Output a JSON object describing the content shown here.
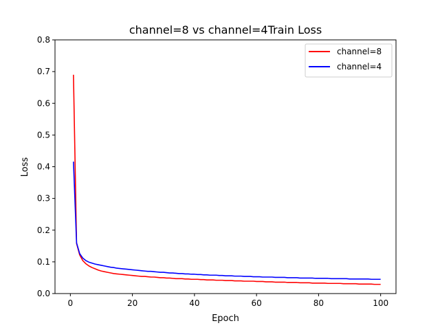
{
  "chart_data": {
    "type": "line",
    "title": "channel=8 vs channel=4Train Loss",
    "xlabel": "Epoch",
    "ylabel": "Loss",
    "xlim": [
      -4.95,
      104.95
    ],
    "ylim": [
      0,
      0.8
    ],
    "xticks": [
      0,
      20,
      40,
      60,
      80,
      100
    ],
    "yticks": [
      0.0,
      0.1,
      0.2,
      0.3,
      0.4,
      0.5,
      0.6,
      0.7,
      0.8
    ],
    "grid": false,
    "legend_position": "upper right",
    "x": [
      1,
      2,
      3,
      4,
      5,
      6,
      7,
      8,
      9,
      10,
      11,
      12,
      13,
      14,
      15,
      16,
      17,
      18,
      19,
      20,
      21,
      22,
      23,
      24,
      25,
      26,
      27,
      28,
      29,
      30,
      31,
      32,
      33,
      34,
      35,
      36,
      37,
      38,
      39,
      40,
      41,
      42,
      43,
      44,
      45,
      46,
      47,
      48,
      49,
      50,
      51,
      52,
      53,
      54,
      55,
      56,
      57,
      58,
      59,
      60,
      61,
      62,
      63,
      64,
      65,
      66,
      67,
      68,
      69,
      70,
      71,
      72,
      73,
      74,
      75,
      76,
      77,
      78,
      79,
      80,
      81,
      82,
      83,
      84,
      85,
      86,
      87,
      88,
      89,
      90,
      91,
      92,
      93,
      94,
      95,
      96,
      97,
      98,
      99,
      100
    ],
    "series": [
      {
        "name": "channel=8",
        "color": "#ff0000",
        "values": [
          0.69,
          0.158,
          0.122,
          0.104,
          0.094,
          0.087,
          0.082,
          0.078,
          0.074,
          0.071,
          0.069,
          0.067,
          0.065,
          0.063,
          0.062,
          0.061,
          0.06,
          0.059,
          0.058,
          0.057,
          0.056,
          0.055,
          0.054,
          0.054,
          0.053,
          0.052,
          0.052,
          0.051,
          0.05,
          0.05,
          0.049,
          0.049,
          0.048,
          0.047,
          0.047,
          0.047,
          0.046,
          0.046,
          0.045,
          0.045,
          0.045,
          0.044,
          0.044,
          0.043,
          0.043,
          0.043,
          0.042,
          0.042,
          0.042,
          0.041,
          0.041,
          0.041,
          0.04,
          0.04,
          0.04,
          0.039,
          0.039,
          0.039,
          0.039,
          0.038,
          0.038,
          0.038,
          0.037,
          0.037,
          0.037,
          0.036,
          0.036,
          0.036,
          0.036,
          0.035,
          0.035,
          0.035,
          0.035,
          0.034,
          0.034,
          0.034,
          0.034,
          0.033,
          0.033,
          0.033,
          0.033,
          0.033,
          0.032,
          0.032,
          0.032,
          0.032,
          0.032,
          0.031,
          0.031,
          0.031,
          0.031,
          0.031,
          0.03,
          0.03,
          0.03,
          0.03,
          0.03,
          0.029,
          0.029,
          0.029
        ]
      },
      {
        "name": "channel=4",
        "color": "#0000ff",
        "values": [
          0.416,
          0.16,
          0.126,
          0.112,
          0.104,
          0.099,
          0.096,
          0.093,
          0.091,
          0.089,
          0.087,
          0.085,
          0.083,
          0.082,
          0.08,
          0.079,
          0.078,
          0.077,
          0.076,
          0.075,
          0.074,
          0.073,
          0.072,
          0.071,
          0.07,
          0.07,
          0.069,
          0.068,
          0.067,
          0.067,
          0.066,
          0.065,
          0.065,
          0.064,
          0.063,
          0.063,
          0.062,
          0.062,
          0.061,
          0.061,
          0.06,
          0.06,
          0.059,
          0.059,
          0.058,
          0.058,
          0.058,
          0.057,
          0.057,
          0.056,
          0.056,
          0.056,
          0.055,
          0.055,
          0.055,
          0.054,
          0.054,
          0.054,
          0.053,
          0.053,
          0.053,
          0.052,
          0.052,
          0.052,
          0.052,
          0.051,
          0.051,
          0.051,
          0.051,
          0.05,
          0.05,
          0.05,
          0.05,
          0.049,
          0.049,
          0.049,
          0.049,
          0.049,
          0.048,
          0.048,
          0.048,
          0.048,
          0.048,
          0.047,
          0.047,
          0.047,
          0.047,
          0.047,
          0.047,
          0.046,
          0.046,
          0.046,
          0.046,
          0.046,
          0.046,
          0.046,
          0.045,
          0.045,
          0.045,
          0.045
        ]
      }
    ]
  }
}
